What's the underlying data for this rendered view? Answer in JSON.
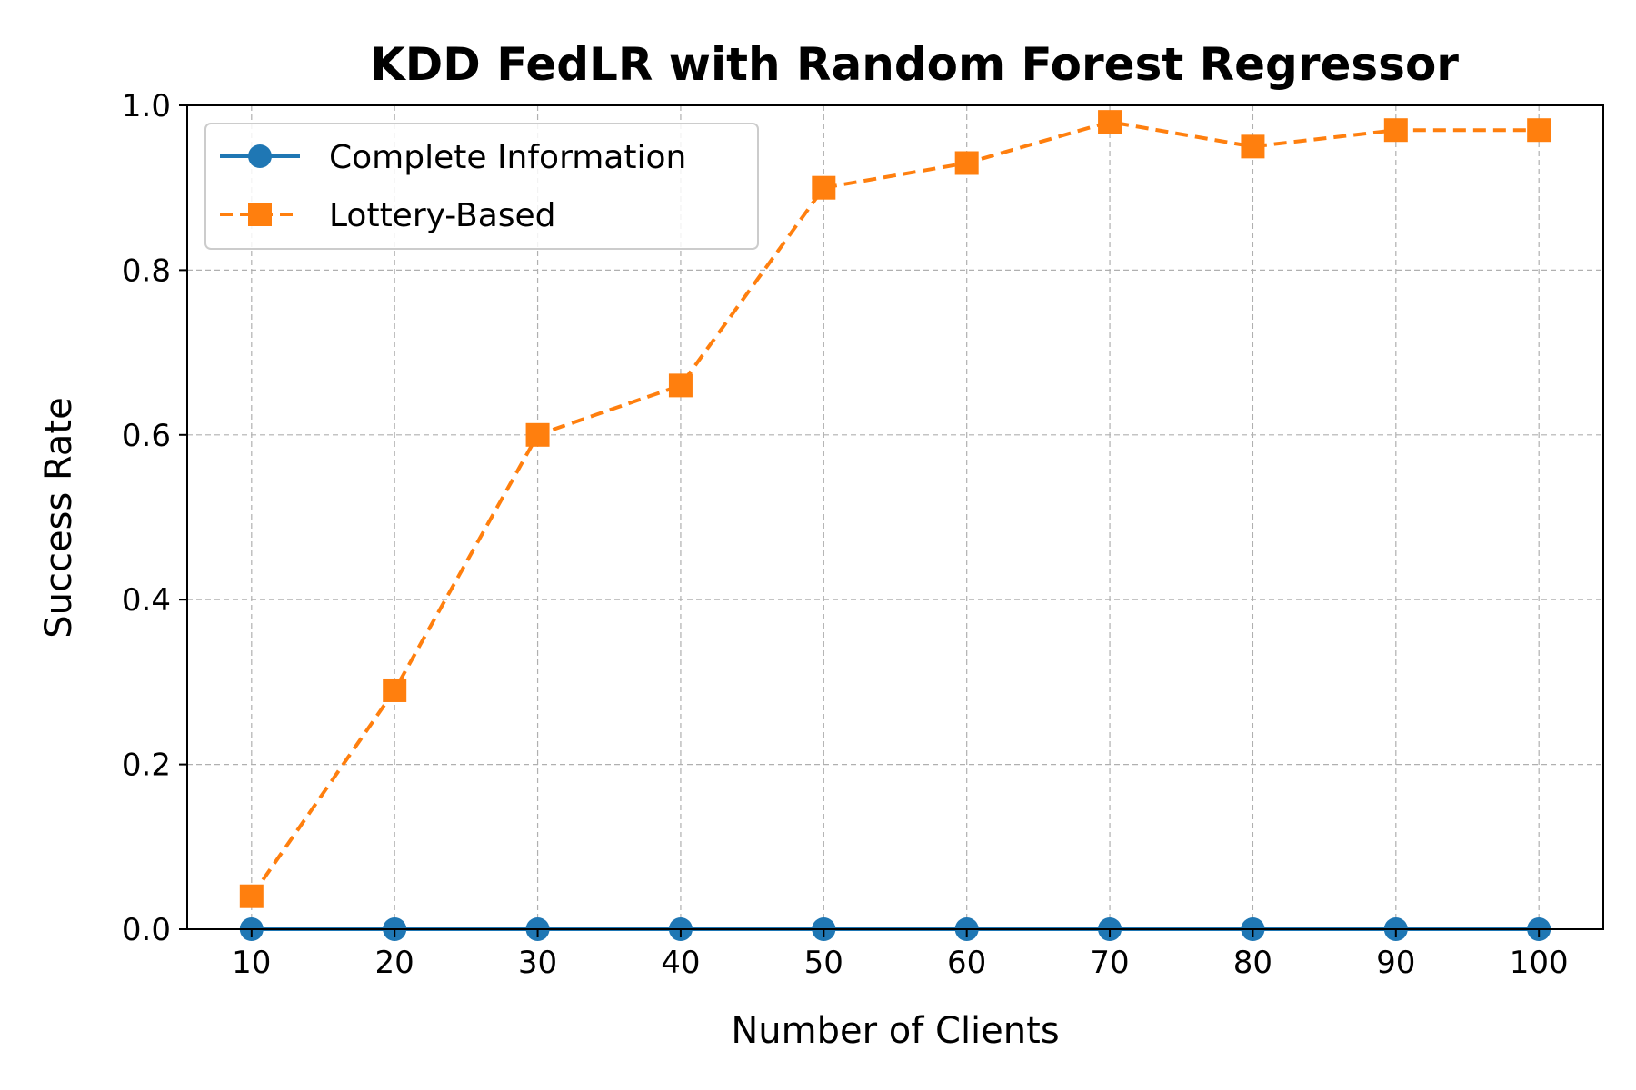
{
  "chart_data": {
    "type": "line",
    "title": "KDD FedLR with Random Forest Regressor",
    "xlabel": "Number of Clients",
    "ylabel": "Success Rate",
    "x": [
      10,
      20,
      30,
      40,
      50,
      60,
      70,
      80,
      90,
      100
    ],
    "xlim": [
      5.5,
      104.5
    ],
    "ylim": [
      0.0,
      1.0
    ],
    "xticks": [
      10,
      20,
      30,
      40,
      50,
      60,
      70,
      80,
      90,
      100
    ],
    "xtick_labels": [
      "10",
      "20",
      "30",
      "40",
      "50",
      "60",
      "70",
      "80",
      "90",
      "100"
    ],
    "yticks": [
      0.0,
      0.2,
      0.4,
      0.6,
      0.8,
      1.0
    ],
    "ytick_labels": [
      "0.0",
      "0.2",
      "0.4",
      "0.6",
      "0.8",
      "1.0"
    ],
    "grid": true,
    "legend_position": "top-left",
    "series": [
      {
        "name": "Complete Information",
        "values": [
          0,
          0,
          0,
          0,
          0,
          0,
          0,
          0,
          0,
          0
        ],
        "color": "#1f77b4",
        "line_style": "solid",
        "marker": "circle"
      },
      {
        "name": "Lottery-Based",
        "values": [
          0.04,
          0.29,
          0.6,
          0.66,
          0.9,
          0.93,
          0.98,
          0.95,
          0.97,
          0.97
        ],
        "color": "#ff7f0e",
        "line_style": "dashed",
        "marker": "square"
      }
    ]
  }
}
